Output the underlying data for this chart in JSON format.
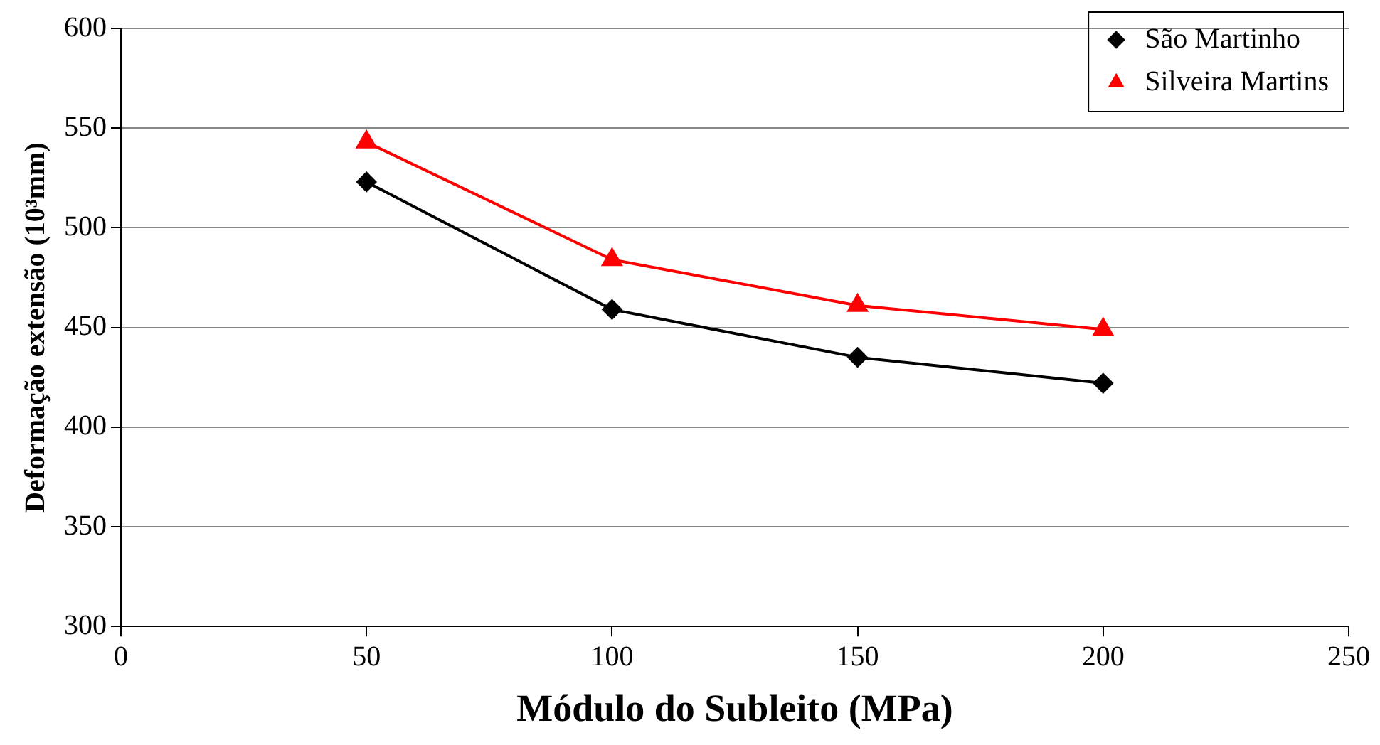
{
  "chart_data": {
    "type": "line",
    "xlabel": "Módulo do Subleito (MPa)",
    "ylabel": "Deformação extensão (10³mm)",
    "x": [
      50,
      100,
      150,
      200
    ],
    "series": [
      {
        "name": "São Martinho",
        "color": "#000000",
        "marker": "diamond",
        "values": [
          523,
          459,
          435,
          422
        ]
      },
      {
        "name": "Silveira Martins",
        "color": "#ff0000",
        "marker": "triangle",
        "values": [
          543,
          484,
          461,
          449
        ]
      }
    ],
    "xlim": [
      0,
      250
    ],
    "xticks": [
      0,
      50,
      100,
      150,
      200,
      250
    ],
    "ylim": [
      300,
      600
    ],
    "yticks": [
      300,
      350,
      400,
      450,
      500,
      550,
      600
    ],
    "grid": "y",
    "legend": "top right",
    "line_style": "solid"
  }
}
